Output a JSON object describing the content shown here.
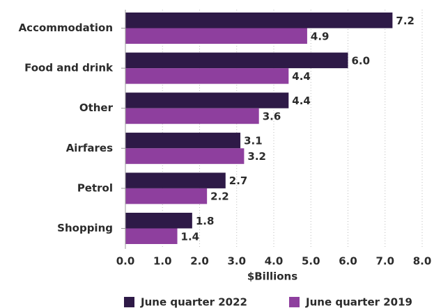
{
  "chart_data": {
    "type": "bar",
    "orientation": "horizontal",
    "categories": [
      "Accommodation",
      "Food and drink",
      "Other",
      "Airfares",
      "Petrol",
      "Shopping"
    ],
    "series": [
      {
        "name": "June quarter 2022",
        "color": "#2e1a47",
        "values": [
          7.2,
          6,
          4.4,
          3.1,
          2.7,
          1.8
        ],
        "value_labels": [
          "7.2",
          "6.0",
          "4.4",
          "3.1",
          "2.7",
          "1.8"
        ]
      },
      {
        "name": "June quarter 2019",
        "color": "#8e3f9e",
        "values": [
          4.9,
          4.4,
          3.6,
          3.2,
          2.2,
          1.4
        ],
        "value_labels": [
          "4.9",
          "4.4",
          "3.6",
          "3.2",
          "2.2",
          "1.4"
        ]
      }
    ],
    "xlabel": "$Billions",
    "xlim": [
      0,
      8
    ],
    "xticks": [
      {
        "value": 0,
        "label": "0.0"
      },
      {
        "value": 1,
        "label": "1.0"
      },
      {
        "value": 2,
        "label": "2.0"
      },
      {
        "value": 3,
        "label": "3.0"
      },
      {
        "value": 4,
        "label": "4.0"
      },
      {
        "value": 5,
        "label": "5.0"
      },
      {
        "value": 6,
        "label": "6.0"
      },
      {
        "value": 7,
        "label": "7.0"
      },
      {
        "value": 8,
        "label": "8.0"
      }
    ],
    "grid": true,
    "legend": "bottom"
  }
}
